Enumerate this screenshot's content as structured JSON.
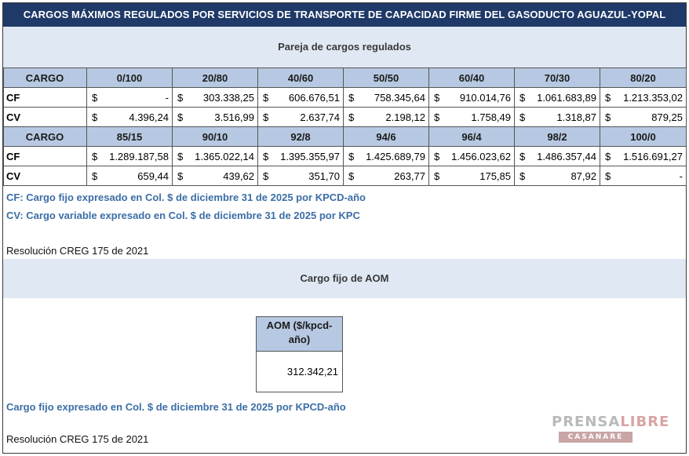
{
  "title": "CARGOS MÁXIMOS REGULADOS POR SERVICIOS DE TRANSPORTE DE CAPACIDAD FIRME DEL GASODUCTO AGUAZUL-YOPAL",
  "section1": "Pareja de cargos regulados",
  "table1": {
    "header": [
      "CARGO",
      "0/100",
      "20/80",
      "40/60",
      "50/50",
      "60/40",
      "70/30",
      "80/20"
    ],
    "cf": {
      "label": "CF",
      "values": [
        "-",
        "303.338,25",
        "606.676,51",
        "758.345,64",
        "910.014,76",
        "1.061.683,89",
        "1.213.353,02"
      ]
    },
    "cv": {
      "label": "CV",
      "values": [
        "4.396,24",
        "3.516,99",
        "2.637,74",
        "2.198,12",
        "1.758,49",
        "1.318,87",
        "879,25"
      ]
    }
  },
  "table2": {
    "header": [
      "CARGO",
      "85/15",
      "90/10",
      "92/8",
      "94/6",
      "96/4",
      "98/2",
      "100/0"
    ],
    "cf": {
      "label": "CF",
      "values": [
        "1.289.187,58",
        "1.365.022,14",
        "1.395.355,97",
        "1.425.689,79",
        "1.456.023,62",
        "1.486.357,44",
        "1.516.691,27"
      ]
    },
    "cv": {
      "label": "CV",
      "values": [
        "659,44",
        "439,62",
        "351,70",
        "263,77",
        "175,85",
        "87,92",
        "-"
      ]
    }
  },
  "currency": "$",
  "notes": {
    "cf": "CF: Cargo fijo expresado en Col. $ de diciembre 31 de 2025 por KPCD-año",
    "cv": "CV: Cargo variable expresado en Col. $ de diciembre 31 de 2025 por KPC",
    "resolution": "Resolución CREG 175 de 2021"
  },
  "section2": "Cargo fijo de AOM",
  "aom": {
    "header": "AOM ($/kpcd-año)",
    "value": "312.342,21"
  },
  "notes2": {
    "cf": "Cargo fijo expresado en Col. $ de diciembre 31 de 2025 por KPCD-año",
    "resolution": "Resolución CREG 175 de 2021"
  },
  "logo": {
    "line1a": "PRENSA",
    "line1b": "LIBRE",
    "line2": "CASANARE"
  },
  "colors": {
    "title_bg": "#1f3a68",
    "band_bg": "#dfe8f3",
    "header_bg": "#b7c9e2",
    "note_text": "#3b6ea5"
  }
}
